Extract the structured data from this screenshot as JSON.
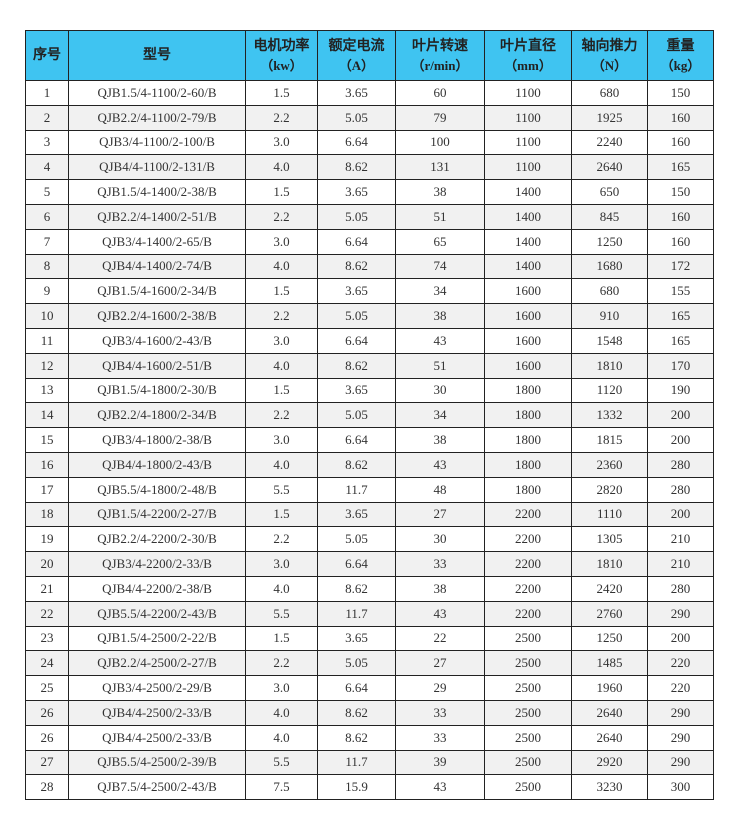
{
  "header_color": "#3fc4f1",
  "columns": [
    {
      "label": "序号",
      "unit": ""
    },
    {
      "label": "型号",
      "unit": ""
    },
    {
      "label": "电机功率",
      "unit": "（kw）"
    },
    {
      "label": "额定电流",
      "unit": "（A）"
    },
    {
      "label": "叶片转速",
      "unit": "（r/min）"
    },
    {
      "label": "叶片直径",
      "unit": "（mm）"
    },
    {
      "label": "轴向推力",
      "unit": "（N）"
    },
    {
      "label": "重量",
      "unit": "（kg）"
    }
  ],
  "rows": [
    [
      "1",
      "QJB1.5/4-1100/2-60/B",
      "1.5",
      "3.65",
      "60",
      "1100",
      "680",
      "150"
    ],
    [
      "2",
      "QJB2.2/4-1100/2-79/B",
      "2.2",
      "5.05",
      "79",
      "1100",
      "1925",
      "160"
    ],
    [
      "3",
      "QJB3/4-1100/2-100/B",
      "3.0",
      "6.64",
      "100",
      "1100",
      "2240",
      "160"
    ],
    [
      "4",
      "QJB4/4-1100/2-131/B",
      "4.0",
      "8.62",
      "131",
      "1100",
      "2640",
      "165"
    ],
    [
      "5",
      "QJB1.5/4-1400/2-38/B",
      "1.5",
      "3.65",
      "38",
      "1400",
      "650",
      "150"
    ],
    [
      "6",
      "QJB2.2/4-1400/2-51/B",
      "2.2",
      "5.05",
      "51",
      "1400",
      "845",
      "160"
    ],
    [
      "7",
      "QJB3/4-1400/2-65/B",
      "3.0",
      "6.64",
      "65",
      "1400",
      "1250",
      "160"
    ],
    [
      "8",
      "QJB4/4-1400/2-74/B",
      "4.0",
      "8.62",
      "74",
      "1400",
      "1680",
      "172"
    ],
    [
      "9",
      "QJB1.5/4-1600/2-34/B",
      "1.5",
      "3.65",
      "34",
      "1600",
      "680",
      "155"
    ],
    [
      "10",
      "QJB2.2/4-1600/2-38/B",
      "2.2",
      "5.05",
      "38",
      "1600",
      "910",
      "165"
    ],
    [
      "11",
      "QJB3/4-1600/2-43/B",
      "3.0",
      "6.64",
      "43",
      "1600",
      "1548",
      "165"
    ],
    [
      "12",
      "QJB4/4-1600/2-51/B",
      "4.0",
      "8.62",
      "51",
      "1600",
      "1810",
      "170"
    ],
    [
      "13",
      "QJB1.5/4-1800/2-30/B",
      "1.5",
      "3.65",
      "30",
      "1800",
      "1120",
      "190"
    ],
    [
      "14",
      "QJB2.2/4-1800/2-34/B",
      "2.2",
      "5.05",
      "34",
      "1800",
      "1332",
      "200"
    ],
    [
      "15",
      "QJB3/4-1800/2-38/B",
      "3.0",
      "6.64",
      "38",
      "1800",
      "1815",
      "200"
    ],
    [
      "16",
      "QJB4/4-1800/2-43/B",
      "4.0",
      "8.62",
      "43",
      "1800",
      "2360",
      "280"
    ],
    [
      "17",
      "QJB5.5/4-1800/2-48/B",
      "5.5",
      "11.7",
      "48",
      "1800",
      "2820",
      "280"
    ],
    [
      "18",
      "QJB1.5/4-2200/2-27/B",
      "1.5",
      "3.65",
      "27",
      "2200",
      "1110",
      "200"
    ],
    [
      "19",
      "QJB2.2/4-2200/2-30/B",
      "2.2",
      "5.05",
      "30",
      "2200",
      "1305",
      "210"
    ],
    [
      "20",
      "QJB3/4-2200/2-33/B",
      "3.0",
      "6.64",
      "33",
      "2200",
      "1810",
      "210"
    ],
    [
      "21",
      "QJB4/4-2200/2-38/B",
      "4.0",
      "8.62",
      "38",
      "2200",
      "2420",
      "280"
    ],
    [
      "22",
      "QJB5.5/4-2200/2-43/B",
      "5.5",
      "11.7",
      "43",
      "2200",
      "2760",
      "290"
    ],
    [
      "23",
      "QJB1.5/4-2500/2-22/B",
      "1.5",
      "3.65",
      "22",
      "2500",
      "1250",
      "200"
    ],
    [
      "24",
      "QJB2.2/4-2500/2-27/B",
      "2.2",
      "5.05",
      "27",
      "2500",
      "1485",
      "220"
    ],
    [
      "25",
      "QJB3/4-2500/2-29/B",
      "3.0",
      "6.64",
      "29",
      "2500",
      "1960",
      "220"
    ],
    [
      "26",
      "QJB4/4-2500/2-33/B",
      "4.0",
      "8.62",
      "33",
      "2500",
      "2640",
      "290"
    ],
    [
      "26",
      "QJB4/4-2500/2-33/B",
      "4.0",
      "8.62",
      "33",
      "2500",
      "2640",
      "290"
    ],
    [
      "27",
      "QJB5.5/4-2500/2-39/B",
      "5.5",
      "11.7",
      "39",
      "2500",
      "2920",
      "290"
    ],
    [
      "28",
      "QJB7.5/4-2500/2-43/B",
      "7.5",
      "15.9",
      "43",
      "2500",
      "3230",
      "300"
    ]
  ]
}
